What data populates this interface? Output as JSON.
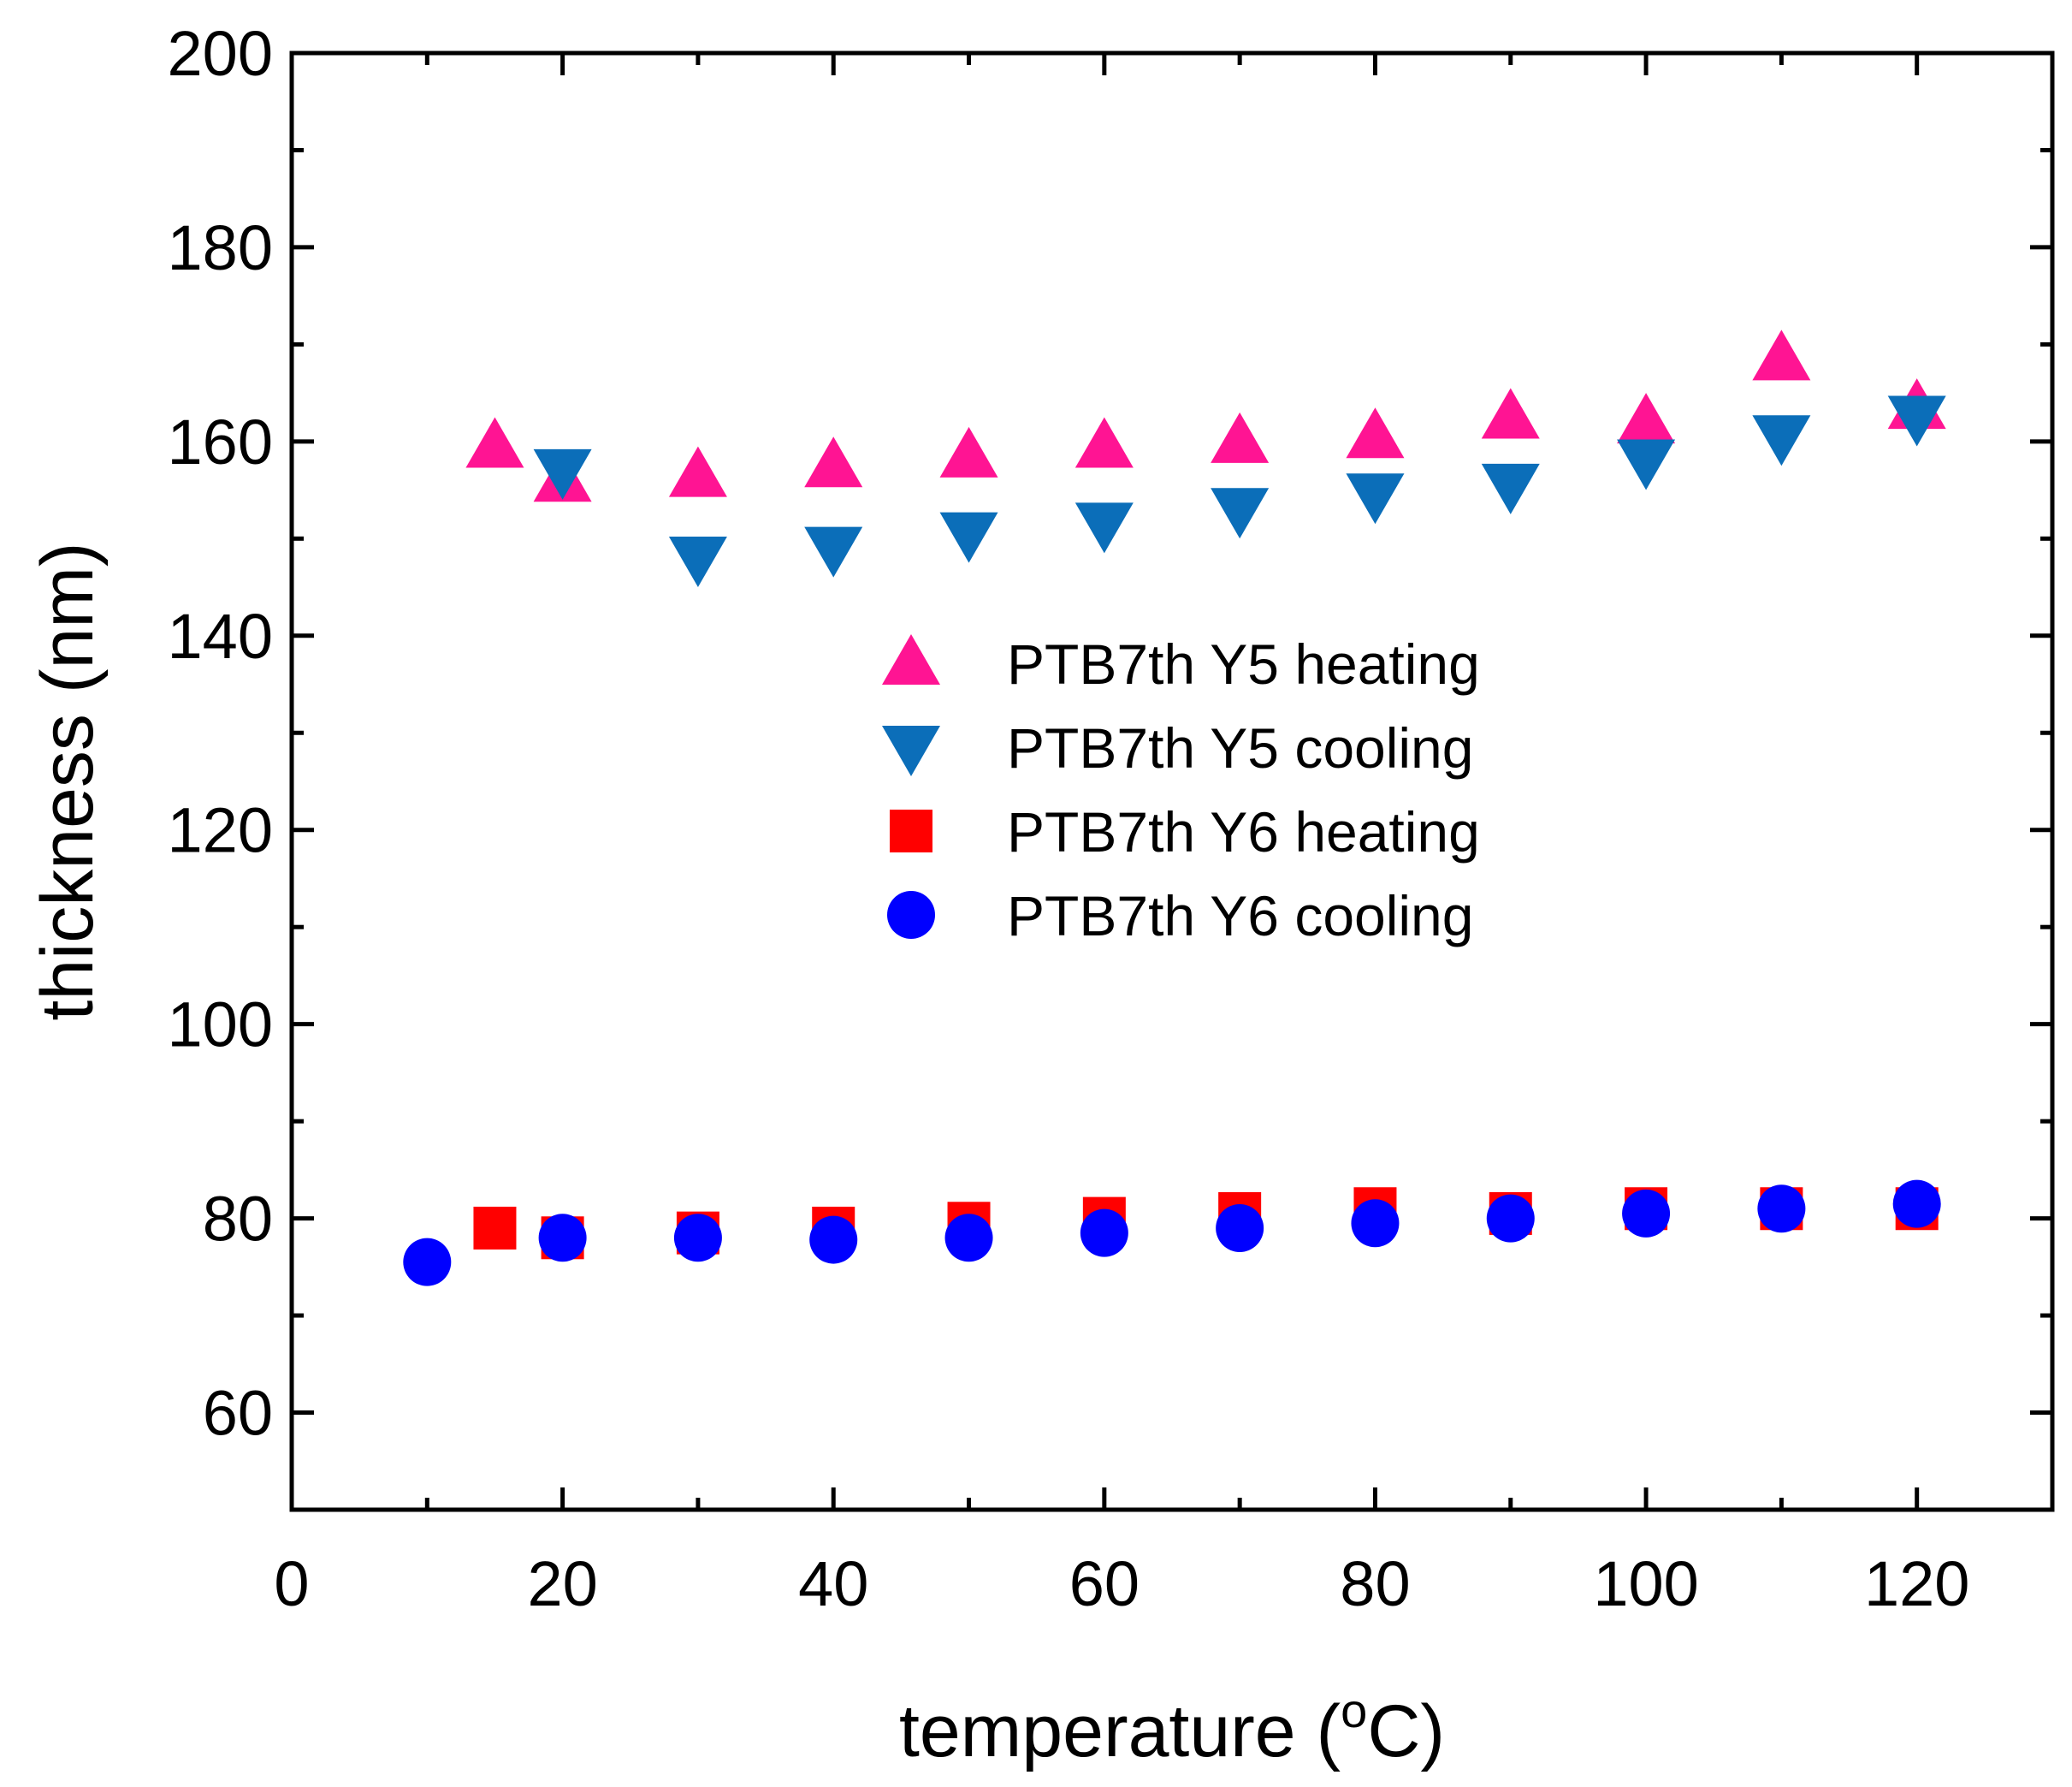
{
  "chart_data": {
    "type": "scatter",
    "title": "",
    "xlabel": "temperature (",
    "xlabel_unit_sup": "o",
    "xlabel_unit_tail": "C)",
    "ylabel": "thickness (nm)",
    "xlim": [
      0,
      130
    ],
    "ylim": [
      50,
      200
    ],
    "x_ticks": [
      0,
      20,
      40,
      60,
      80,
      100,
      120
    ],
    "y_ticks": [
      60,
      80,
      100,
      120,
      140,
      160,
      180,
      200
    ],
    "grid": false,
    "legend_position": "center",
    "series": [
      {
        "name": "PTB7th Y5 heating",
        "marker": "triangle-up",
        "color": "#ff1493",
        "points": [
          [
            15,
            159.5
          ],
          [
            20,
            156.0
          ],
          [
            30,
            156.5
          ],
          [
            40,
            157.5
          ],
          [
            50,
            158.5
          ],
          [
            60,
            159.5
          ],
          [
            70,
            160.0
          ],
          [
            80,
            160.5
          ],
          [
            90,
            162.5
          ],
          [
            100,
            162.0
          ],
          [
            110,
            168.5
          ],
          [
            120,
            163.5
          ]
        ]
      },
      {
        "name": "PTB7th Y5 cooling",
        "marker": "triangle-down",
        "color": "#0b6eb9",
        "points": [
          [
            20,
            157.0
          ],
          [
            30,
            148.0
          ],
          [
            40,
            149.0
          ],
          [
            50,
            150.5
          ],
          [
            60,
            151.5
          ],
          [
            70,
            153.0
          ],
          [
            80,
            154.5
          ],
          [
            90,
            155.5
          ],
          [
            100,
            158.0
          ],
          [
            110,
            160.5
          ],
          [
            120,
            162.5
          ]
        ]
      },
      {
        "name": "PTB7th Y6 heating",
        "marker": "square",
        "color": "#ff0000",
        "points": [
          [
            15,
            79.0
          ],
          [
            20,
            78.0
          ],
          [
            30,
            78.5
          ],
          [
            40,
            79.0
          ],
          [
            50,
            79.5
          ],
          [
            60,
            80.0
          ],
          [
            70,
            80.5
          ],
          [
            80,
            81.0
          ],
          [
            90,
            80.5
          ],
          [
            100,
            81.0
          ],
          [
            110,
            81.0
          ],
          [
            120,
            81.0
          ]
        ]
      },
      {
        "name": "PTB7th Y6 cooling",
        "marker": "circle",
        "color": "#0000ff",
        "points": [
          [
            10,
            75.5
          ],
          [
            20,
            78.0
          ],
          [
            30,
            78.0
          ],
          [
            40,
            77.8
          ],
          [
            50,
            78.0
          ],
          [
            60,
            78.5
          ],
          [
            70,
            79.0
          ],
          [
            80,
            79.5
          ],
          [
            90,
            80.0
          ],
          [
            100,
            80.5
          ],
          [
            110,
            81.0
          ],
          [
            120,
            81.5
          ]
        ]
      }
    ]
  }
}
